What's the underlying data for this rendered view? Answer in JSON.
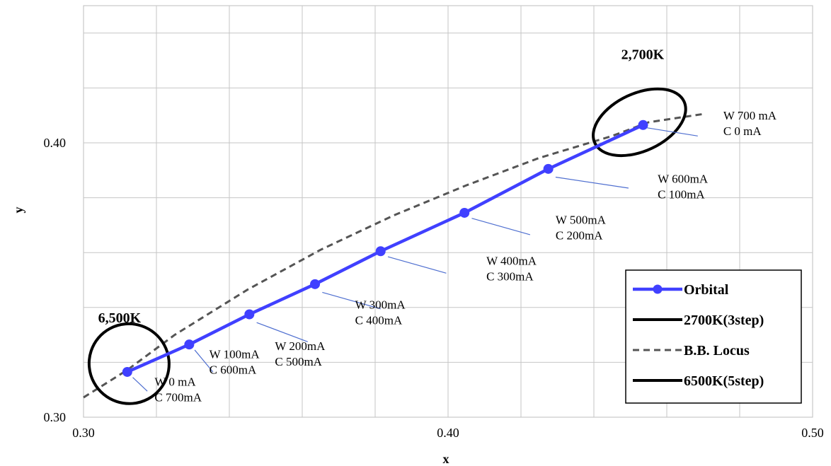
{
  "chart_data": {
    "type": "line",
    "xlabel": "x",
    "ylabel": "y",
    "xlim": [
      0.3,
      0.5
    ],
    "ylim": [
      0.3,
      0.45
    ],
    "x_ticks": [
      {
        "value": 0.3,
        "label": "0.30"
      },
      {
        "value": 0.4,
        "label": "0.40"
      },
      {
        "value": 0.5,
        "label": "0.50"
      }
    ],
    "y_ticks": [
      {
        "value": 0.3,
        "label": "0.30"
      },
      {
        "value": 0.4,
        "label": "0.40"
      }
    ],
    "grid": true,
    "legend_position": "bottom-right",
    "series": [
      {
        "name": "Orbital",
        "color": "#4040ff",
        "style": "line-markers",
        "points": [
          {
            "x": 0.312,
            "y": 0.3165
          },
          {
            "x": 0.329,
            "y": 0.3265
          },
          {
            "x": 0.3455,
            "y": 0.3375
          },
          {
            "x": 0.3635,
            "y": 0.3485
          },
          {
            "x": 0.3815,
            "y": 0.3605
          },
          {
            "x": 0.4045,
            "y": 0.3745
          },
          {
            "x": 0.4275,
            "y": 0.3905
          },
          {
            "x": 0.4535,
            "y": 0.4065
          }
        ]
      },
      {
        "name": "2700K(3step)",
        "color": "#000000",
        "style": "ellipse",
        "center": {
          "x": 0.4525,
          "y": 0.4075
        },
        "radius_x": 0.0135,
        "radius_y": 0.0105,
        "rotation_deg": -25
      },
      {
        "name": "B.B. Locus",
        "color": "#555555",
        "style": "dashed",
        "points": [
          {
            "x": 0.3,
            "y": 0.3072
          },
          {
            "x": 0.312,
            "y": 0.3172
          },
          {
            "x": 0.325,
            "y": 0.33
          },
          {
            "x": 0.345,
            "y": 0.3465
          },
          {
            "x": 0.365,
            "y": 0.361
          },
          {
            "x": 0.385,
            "y": 0.3735
          },
          {
            "x": 0.405,
            "y": 0.3845
          },
          {
            "x": 0.425,
            "y": 0.3945
          },
          {
            "x": 0.445,
            "y": 0.4025
          },
          {
            "x": 0.455,
            "y": 0.4075
          },
          {
            "x": 0.47,
            "y": 0.4105
          }
        ]
      },
      {
        "name": "6500K(5step)",
        "color": "#000000",
        "style": "ellipse",
        "center": {
          "x": 0.3125,
          "y": 0.3195
        },
        "radius_x": 0.011,
        "radius_y": 0.0145,
        "rotation_deg": 40
      }
    ],
    "annotations": [
      {
        "text": "2,700K",
        "x": 0.4475,
        "y": 0.4305,
        "bold": true,
        "size": 20
      },
      {
        "text": "6,500K",
        "x": 0.304,
        "y": 0.3345,
        "bold": true,
        "size": 20
      },
      {
        "lines": [
          "W 700 mA",
          "C   0 mA"
        ],
        "x": 0.4755,
        "y": 0.4085,
        "anchor": {
          "x": 0.4545,
          "y": 0.4055
        },
        "leader_to": {
          "x": 0.4685,
          "y": 0.4025
        }
      },
      {
        "lines": [
          "W 600mA",
          "C  100mA"
        ],
        "x": 0.4575,
        "y": 0.3855,
        "anchor": {
          "x": 0.4295,
          "y": 0.3875
        },
        "leader_to": {
          "x": 0.4495,
          "y": 0.3835
        }
      },
      {
        "lines": [
          "W 500mA",
          "C  200mA"
        ],
        "x": 0.4295,
        "y": 0.3705,
        "anchor": {
          "x": 0.4065,
          "y": 0.3725
        },
        "leader_to": {
          "x": 0.4225,
          "y": 0.3665
        }
      },
      {
        "lines": [
          "W 400mA",
          "C  300mA"
        ],
        "x": 0.4105,
        "y": 0.3555,
        "anchor": {
          "x": 0.3835,
          "y": 0.3585
        },
        "leader_to": {
          "x": 0.3995,
          "y": 0.3525
        }
      },
      {
        "lines": [
          "W 300mA",
          "C  400mA"
        ],
        "x": 0.3745,
        "y": 0.3395,
        "anchor": {
          "x": 0.3655,
          "y": 0.3455
        },
        "leader_to": {
          "x": 0.3815,
          "y": 0.3395
        }
      },
      {
        "lines": [
          "W 200mA",
          "C  500mA"
        ],
        "x": 0.3525,
        "y": 0.3245,
        "anchor": {
          "x": 0.3475,
          "y": 0.3345
        },
        "leader_to": {
          "x": 0.3615,
          "y": 0.3275
        }
      },
      {
        "lines": [
          "W 100mA",
          "C  600mA"
        ],
        "x": 0.3345,
        "y": 0.3215,
        "anchor": {
          "x": 0.3305,
          "y": 0.3245
        },
        "leader_to": {
          "x": 0.3355,
          "y": 0.3165
        }
      },
      {
        "lines": [
          "W  0 mA",
          "C  700mA"
        ],
        "x": 0.3195,
        "y": 0.3115,
        "anchor": {
          "x": 0.3135,
          "y": 0.3145
        },
        "leader_to": {
          "x": 0.3175,
          "y": 0.3095
        }
      }
    ]
  }
}
